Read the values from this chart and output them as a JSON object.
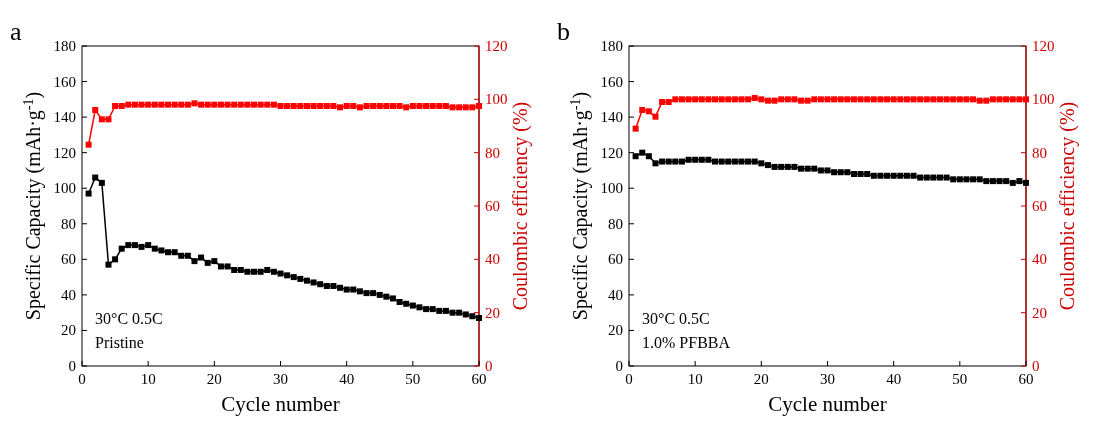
{
  "chart_data": [
    {
      "type": "line",
      "xlabel": "Cycle number",
      "ylabel": "Specific Capacity (mAh·g$^{-1}$)",
      "y2label": "Coulombic efficiency (%)",
      "annotations": [
        "a",
        "30°C 0.5C",
        "Pristine"
      ],
      "xlim": [
        0,
        60
      ],
      "xticks": [
        0,
        10,
        20,
        30,
        40,
        50,
        60
      ],
      "ylim": [
        0,
        180
      ],
      "yticks": [
        0,
        20,
        40,
        60,
        80,
        100,
        120,
        140,
        160,
        180
      ],
      "y2lim": [
        0,
        120
      ],
      "y2ticks": [
        0,
        20,
        40,
        60,
        80,
        100,
        120
      ],
      "marker": "square",
      "grid": false,
      "series": [
        {
          "color": "#000000",
          "axis": "y",
          "x": [
            1,
            2,
            3,
            4,
            5,
            6,
            7,
            8,
            9,
            10,
            11,
            12,
            13,
            14,
            15,
            16,
            17,
            18,
            19,
            20,
            21,
            22,
            23,
            24,
            25,
            26,
            27,
            28,
            29,
            30,
            31,
            32,
            33,
            34,
            35,
            36,
            37,
            38,
            39,
            40,
            41,
            42,
            43,
            44,
            45,
            46,
            47,
            48,
            49,
            50,
            51,
            52,
            53,
            54,
            55,
            56,
            57,
            58,
            59,
            60
          ],
          "values": [
            97,
            106,
            103,
            57,
            60,
            66,
            68,
            68,
            67,
            68,
            66,
            65,
            64,
            64,
            62,
            62,
            59,
            61,
            58,
            59,
            56,
            56,
            54,
            54,
            53,
            53,
            53,
            54,
            53,
            52,
            51,
            50,
            49,
            48,
            47,
            46,
            45,
            45,
            44,
            43,
            43,
            42,
            41,
            41,
            40,
            39,
            38,
            36,
            35,
            34,
            33,
            32,
            32,
            31,
            31,
            30,
            30,
            29,
            28,
            27
          ]
        },
        {
          "color": "#ff0000",
          "axis": "y2",
          "x": [
            1,
            2,
            3,
            4,
            5,
            6,
            7,
            8,
            9,
            10,
            11,
            12,
            13,
            14,
            15,
            16,
            17,
            18,
            19,
            20,
            21,
            22,
            23,
            24,
            25,
            26,
            27,
            28,
            29,
            30,
            31,
            32,
            33,
            34,
            35,
            36,
            37,
            38,
            39,
            40,
            41,
            42,
            43,
            44,
            45,
            46,
            47,
            48,
            49,
            50,
            51,
            52,
            53,
            54,
            55,
            56,
            57,
            58,
            59,
            60
          ],
          "values": [
            83,
            96,
            92.5,
            92.5,
            97.5,
            97.5,
            98,
            98,
            98,
            98,
            98,
            98,
            98,
            98,
            98,
            98,
            98.5,
            98,
            98,
            98,
            98,
            98,
            98,
            98,
            98,
            98,
            98,
            98,
            98,
            97.5,
            97.5,
            97.5,
            97.5,
            97.5,
            97.5,
            97.5,
            97.5,
            97.5,
            97,
            97.5,
            97.5,
            97,
            97.5,
            97.5,
            97.5,
            97.5,
            97.5,
            97.5,
            97,
            97.5,
            97.5,
            97.5,
            97.5,
            97.5,
            97.5,
            97,
            97,
            97,
            97,
            97.5
          ]
        }
      ]
    },
    {
      "type": "line",
      "xlabel": "Cycle number",
      "ylabel": "Specific Capacity (mAh·g$^{-1}$)",
      "y2label": "Coulombic efficiency (%)",
      "annotations": [
        "b",
        "30°C 0.5C",
        "1.0% PFBBA"
      ],
      "xlim": [
        0,
        60
      ],
      "xticks": [
        0,
        10,
        20,
        30,
        40,
        50,
        60
      ],
      "ylim": [
        0,
        180
      ],
      "yticks": [
        0,
        20,
        40,
        60,
        80,
        100,
        120,
        140,
        160,
        180
      ],
      "y2lim": [
        0,
        120
      ],
      "y2ticks": [
        0,
        20,
        40,
        60,
        80,
        100,
        120
      ],
      "marker": "square",
      "grid": false,
      "series": [
        {
          "color": "#000000",
          "axis": "y",
          "x": [
            1,
            2,
            3,
            4,
            5,
            6,
            7,
            8,
            9,
            10,
            11,
            12,
            13,
            14,
            15,
            16,
            17,
            18,
            19,
            20,
            21,
            22,
            23,
            24,
            25,
            26,
            27,
            28,
            29,
            30,
            31,
            32,
            33,
            34,
            35,
            36,
            37,
            38,
            39,
            40,
            41,
            42,
            43,
            44,
            45,
            46,
            47,
            48,
            49,
            50,
            51,
            52,
            53,
            54,
            55,
            56,
            57,
            58,
            59,
            60
          ],
          "values": [
            118,
            120,
            118,
            114,
            115,
            115,
            115,
            115,
            116,
            116,
            116,
            116,
            115,
            115,
            115,
            115,
            115,
            115,
            115,
            114,
            113,
            112,
            112,
            112,
            112,
            111,
            111,
            111,
            110,
            110,
            109,
            109,
            109,
            108,
            108,
            108,
            107,
            107,
            107,
            107,
            107,
            107,
            107,
            106,
            106,
            106,
            106,
            106,
            105,
            105,
            105,
            105,
            105,
            104,
            104,
            104,
            104,
            103,
            104,
            103
          ]
        },
        {
          "color": "#ff0000",
          "axis": "y2",
          "x": [
            1,
            2,
            3,
            4,
            5,
            6,
            7,
            8,
            9,
            10,
            11,
            12,
            13,
            14,
            15,
            16,
            17,
            18,
            19,
            20,
            21,
            22,
            23,
            24,
            25,
            26,
            27,
            28,
            29,
            30,
            31,
            32,
            33,
            34,
            35,
            36,
            37,
            38,
            39,
            40,
            41,
            42,
            43,
            44,
            45,
            46,
            47,
            48,
            49,
            50,
            51,
            52,
            53,
            54,
            55,
            56,
            57,
            58,
            59,
            60
          ],
          "values": [
            89,
            96,
            95.5,
            93.5,
            99,
            99,
            100,
            100,
            100,
            100,
            100,
            100,
            100,
            100,
            100,
            100,
            100,
            100,
            100.5,
            100,
            99.5,
            99.5,
            100,
            100,
            100,
            99.5,
            99.5,
            100,
            100,
            100,
            100,
            100,
            100,
            100,
            100,
            100,
            100,
            100,
            100,
            100,
            100,
            100,
            100,
            100,
            100,
            100,
            100,
            100,
            100,
            100,
            100,
            100,
            99.5,
            99.5,
            100,
            100,
            100,
            100,
            100,
            100
          ]
        }
      ]
    }
  ]
}
